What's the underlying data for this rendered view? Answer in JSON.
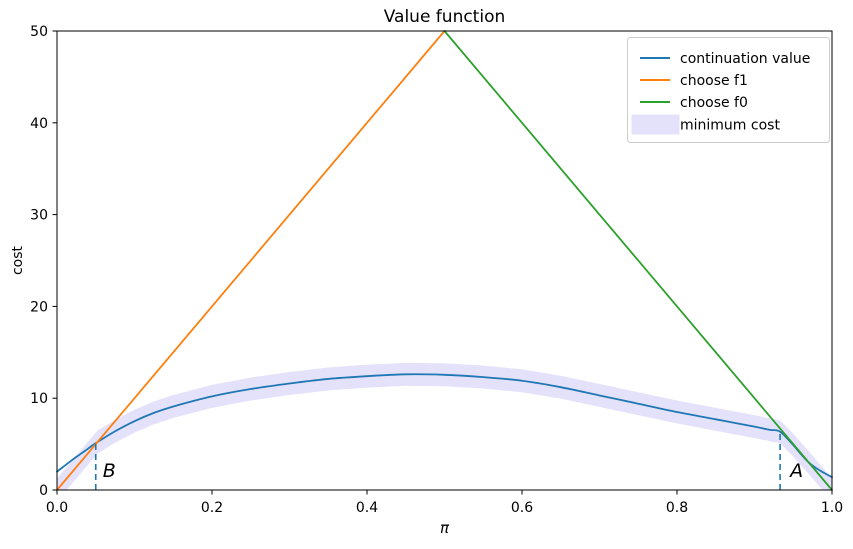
{
  "chart_data": {
    "type": "line",
    "title": "Value function",
    "xlabel": "π",
    "ylabel": "cost",
    "xlim": [
      0.0,
      1.0
    ],
    "ylim": [
      0,
      50
    ],
    "xticks": [
      0.0,
      0.2,
      0.4,
      0.6,
      0.8,
      1.0
    ],
    "xtick_labels": [
      "0.0",
      "0.2",
      "0.4",
      "0.6",
      "0.8",
      "1.0"
    ],
    "yticks": [
      0,
      10,
      20,
      30,
      40,
      50
    ],
    "ytick_labels": [
      "0",
      "10",
      "20",
      "30",
      "40",
      "50"
    ],
    "grid": false,
    "legend_position": "upper right",
    "series": [
      {
        "name": "continuation value",
        "type": "line",
        "color": "#1f77b4",
        "x": [
          0.0,
          0.01,
          0.02,
          0.03,
          0.04,
          0.05,
          0.075,
          0.1,
          0.125,
          0.15,
          0.2,
          0.25,
          0.3,
          0.35,
          0.4,
          0.45,
          0.5,
          0.55,
          0.6,
          0.65,
          0.7,
          0.75,
          0.8,
          0.85,
          0.875,
          0.9,
          0.92,
          0.933,
          0.95,
          0.96,
          0.97,
          0.98,
          0.99,
          1.0
        ],
        "y": [
          2.0,
          2.65,
          3.3,
          3.9,
          4.5,
          5.1,
          6.4,
          7.5,
          8.4,
          9.1,
          10.2,
          11.0,
          11.6,
          12.1,
          12.4,
          12.6,
          12.55,
          12.3,
          11.9,
          11.2,
          10.3,
          9.4,
          8.5,
          7.7,
          7.3,
          6.9,
          6.55,
          6.35,
          4.9,
          3.9,
          3.0,
          2.35,
          1.85,
          1.4
        ]
      },
      {
        "name": "choose f1",
        "type": "line",
        "color": "#ff7f0e",
        "x": [
          0.0,
          0.5
        ],
        "y": [
          0,
          50
        ]
      },
      {
        "name": "choose f0",
        "type": "line",
        "color": "#2ca02c",
        "x": [
          0.5,
          1.0
        ],
        "y": [
          50,
          0
        ]
      },
      {
        "name": "minimum cost",
        "type": "band",
        "color": "#e4e1fa",
        "center": "min_of_line_series",
        "halfwidth": 1.25
      }
    ],
    "vlines": [
      {
        "label": "B",
        "x": 0.05,
        "y0": 0,
        "y1": 5.1,
        "style": "dashed",
        "color": "#1f77b4"
      },
      {
        "label": "A",
        "x": 0.933,
        "y0": 0,
        "y1": 6.35,
        "style": "dashed",
        "color": "#1f77b4"
      }
    ],
    "annotations": [
      {
        "text": "B",
        "x": 0.059,
        "y": 1.4,
        "italic": true
      },
      {
        "text": "A",
        "x": 0.946,
        "y": 1.4,
        "italic": true
      }
    ]
  }
}
